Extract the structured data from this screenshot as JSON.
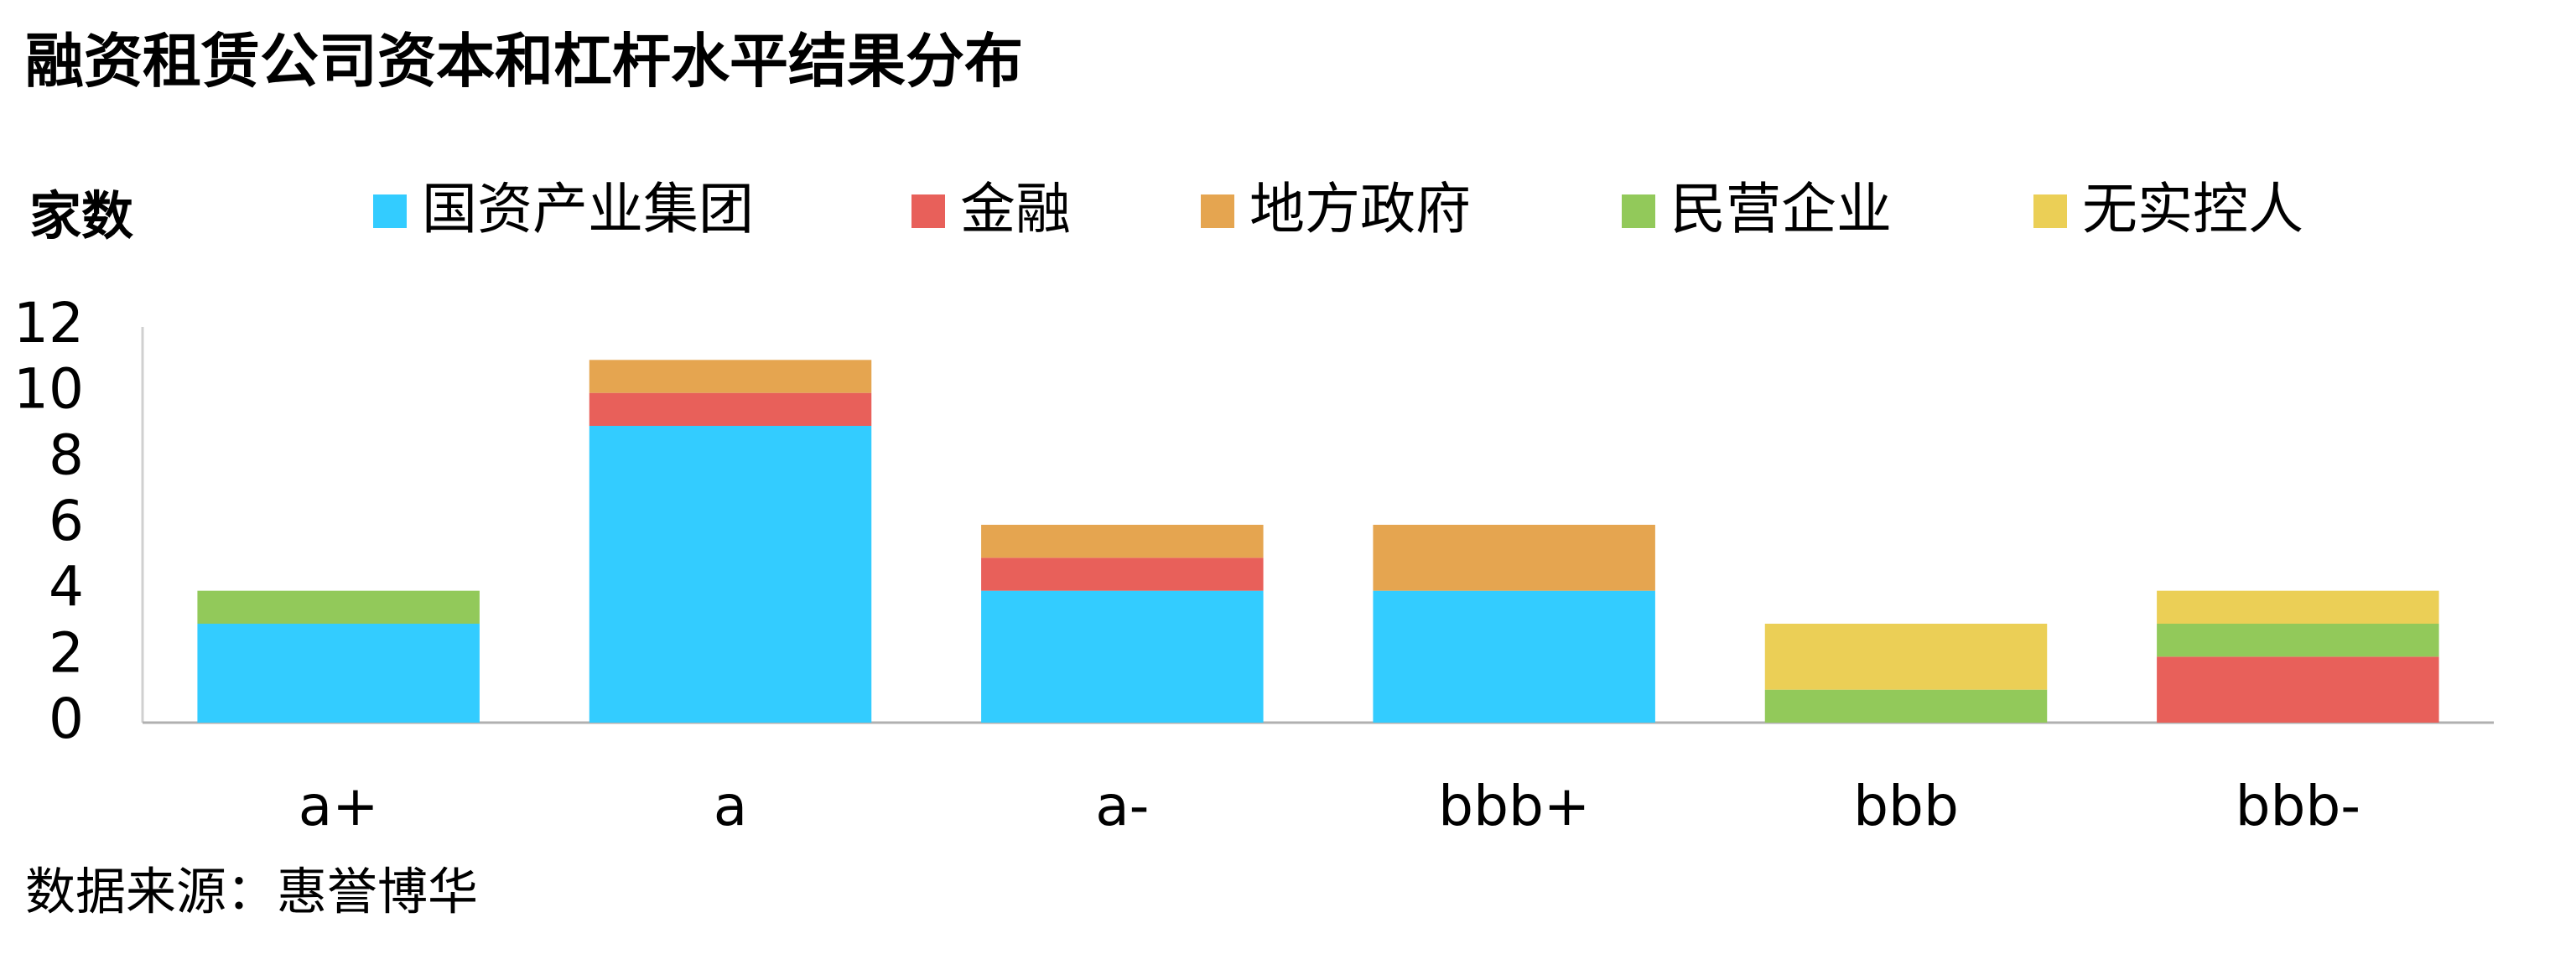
{
  "chart_data": {
    "type": "stacked_bar",
    "title": "融资租赁公司资本和杠杆水平结果分布",
    "y_label": "家数",
    "source": "数据来源：惠誉博华",
    "categories": [
      "a+",
      "a",
      "a-",
      "bbb+",
      "bbb",
      "bbb-"
    ],
    "series": [
      {
        "name": "国资产业集团",
        "color": "#33ccff",
        "values": [
          3,
          9,
          4,
          4,
          0,
          0
        ]
      },
      {
        "name": "金融",
        "color": "#e8605a",
        "values": [
          0,
          1,
          1,
          0,
          0,
          2
        ]
      },
      {
        "name": "地方政府",
        "color": "#e5a550",
        "values": [
          0,
          1,
          1,
          2,
          0,
          0
        ]
      },
      {
        "name": "民营企业",
        "color": "#92c95a",
        "values": [
          1,
          0,
          0,
          0,
          1,
          1
        ]
      },
      {
        "name": "无实控人",
        "color": "#ebcf56",
        "values": [
          0,
          0,
          0,
          0,
          2,
          1
        ]
      }
    ],
    "ylim": [
      0,
      12
    ],
    "yticks": [
      0,
      2,
      4,
      6,
      8,
      10,
      12
    ],
    "grid": false
  }
}
